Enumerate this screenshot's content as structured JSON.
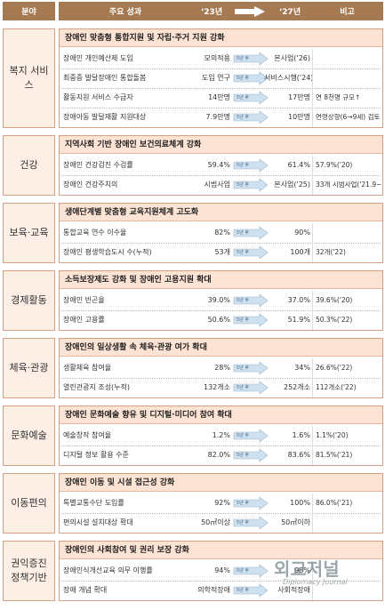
{
  "header": {
    "field": "분야",
    "achievement": "주요 성과",
    "year_start": "‘23년",
    "year_end": "‘27년",
    "note": "비고"
  },
  "arrow_label": "5년 후",
  "sections": [
    {
      "field": "복지 서비스",
      "subtitle": "장애인 맞춤형 통합지원 및 자립·주거 지원 강화",
      "rows": [
        {
          "item": "장애인 개인예산제 도입",
          "start": "모의적용",
          "end": "본사업('26)",
          "note": null
        },
        {
          "item": "최중증 발달장애인 통합돌봄",
          "start": "도입 연구",
          "end": "서비스시행('24)",
          "note": null
        },
        {
          "item": "활동지원 서비스 수급자",
          "start": "14만명",
          "end": "17만명",
          "note": "연 8천명 규모↑"
        },
        {
          "item": "장애아동 발달재활 지원대상",
          "start": "7.9만명",
          "end": "10만명",
          "note": "연령상향(6→9세) 검토"
        }
      ]
    },
    {
      "field": "건강",
      "subtitle": "지역사회 기반 장애인 보건의료체계 강화",
      "rows": [
        {
          "item": "장애인 건강검진 수검률",
          "start": "59.4%",
          "end": "61.4%",
          "note": "57.9%('20)"
        },
        {
          "item": "장애인 건강주치의",
          "start": "시범사업",
          "end": "본사업('25)",
          "note": "33개 시범사업('21.9~)"
        }
      ]
    },
    {
      "field": "보육·교육",
      "subtitle": "생애단계별 맞춤형 교육지원체계 고도화",
      "rows": [
        {
          "item": "통합교육 연수 이수율",
          "start": "82%",
          "end": "90%",
          "note": null
        },
        {
          "item": "장애인 평생학습도시 수(누적)",
          "start": "53개",
          "end": "100개",
          "note": "32개('22)"
        }
      ]
    },
    {
      "field": "경제활동",
      "subtitle": "소득보장제도 강화 및 장애인 고용지원 확대",
      "rows": [
        {
          "item": "장애인 빈곤율",
          "start": "39.0%",
          "end": "37.0%",
          "note": "39.6%('20)"
        },
        {
          "item": "장애인 고용률",
          "start": "50.6%",
          "end": "51.9%",
          "note": "50.3%('22)"
        }
      ]
    },
    {
      "field": "체육·관광",
      "subtitle": "장애인의 일상생활 속 체육·관광 여가 확대",
      "rows": [
        {
          "item": "생활체육 참여율",
          "start": "28%",
          "end": "34%",
          "note": "26.6%('22)"
        },
        {
          "item": "열린관광지 조성(누적)",
          "start": "132개소",
          "end": "252개소",
          "note": "112개소('22)"
        }
      ]
    },
    {
      "field": "문화예술",
      "subtitle": "장애인 문화예술 향유 및 디지털·미디어 참여 확대",
      "rows": [
        {
          "item": "예술창작 참여율",
          "start": "1.2%",
          "end": "1.6%",
          "note": "1.1%('20)"
        },
        {
          "item": "디지털 정보 활용 수준",
          "start": "82.0%",
          "end": "83.6%",
          "note": "81.5%('21)"
        }
      ]
    },
    {
      "field": "이동편의",
      "subtitle": "장애인 이동 및 시설 접근성 강화",
      "rows": [
        {
          "item": "특별교통수단 도입률",
          "start": "92%",
          "end": "100%",
          "note": "86.0%('21)"
        },
        {
          "item": "편의시설 설치대상 확대",
          "start": "50㎡이상",
          "end": "50㎡이하",
          "note": null
        }
      ]
    },
    {
      "field": "권익증진 정책기반",
      "subtitle": "장애인의 사회참여 및 권리 보장 강화",
      "rows": [
        {
          "item": "장애인식개선교육 의무 이행률",
          "start": "94%",
          "end": "98%",
          "note": null
        },
        {
          "item": "장애 개념 확대",
          "start": "의학적장애",
          "end": "사회적장애",
          "note": null
        }
      ]
    }
  ],
  "watermark": {
    "title": "외교저널",
    "subtitle": "Diplomacy Journal"
  }
}
